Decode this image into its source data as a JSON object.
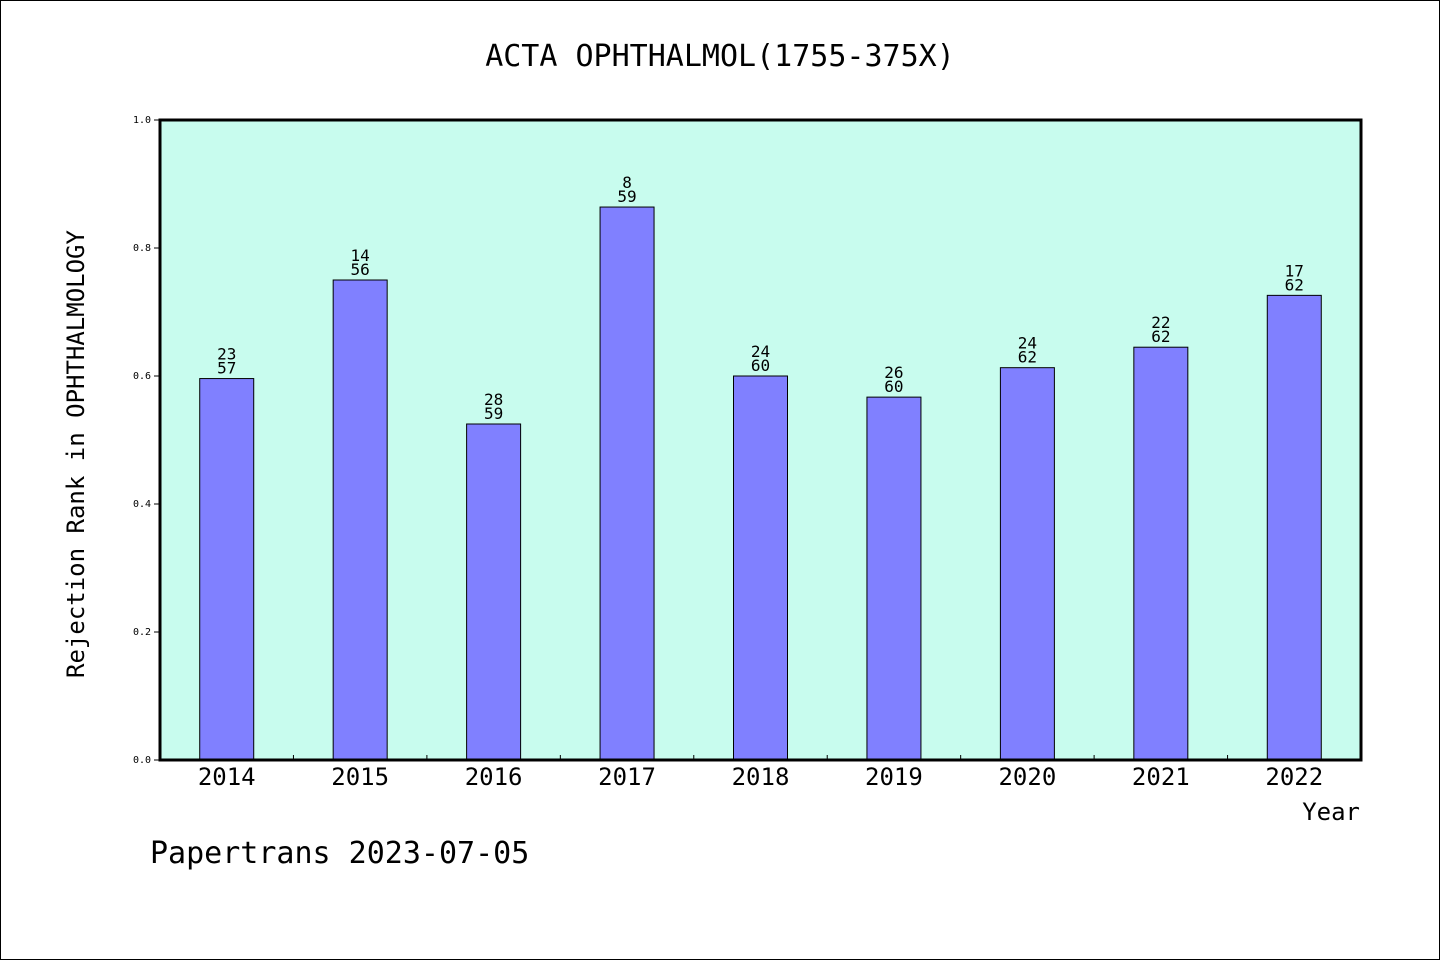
{
  "chart_data": {
    "type": "bar",
    "title": "ACTA OPHTHALMOL(1755-375X)",
    "xlabel": "Year",
    "ylabel": "Rejection Rank in OPHTHALMOLOGY",
    "categories": [
      "2014",
      "2015",
      "2016",
      "2017",
      "2018",
      "2019",
      "2020",
      "2021",
      "2022"
    ],
    "values": [
      0.596,
      0.75,
      0.525,
      0.864,
      0.6,
      0.567,
      0.613,
      0.645,
      0.726
    ],
    "bar_labels": [
      [
        "23",
        "57"
      ],
      [
        "14",
        "56"
      ],
      [
        "28",
        "59"
      ],
      [
        "8",
        "59"
      ],
      [
        "24",
        "60"
      ],
      [
        "26",
        "60"
      ],
      [
        "24",
        "62"
      ],
      [
        "22",
        "62"
      ],
      [
        "17",
        "62"
      ]
    ],
    "ylim": [
      0.0,
      1.0
    ],
    "yticks": [
      "0.0",
      "0.2",
      "0.4",
      "0.6",
      "0.8",
      "1.0"
    ],
    "grid": false,
    "legend": "none",
    "colors": {
      "plot_background": "#c8fcee",
      "bar": "#8080ff",
      "bar_edge": "#000000"
    }
  },
  "footer": {
    "text": "Papertrans 2023-07-05"
  }
}
